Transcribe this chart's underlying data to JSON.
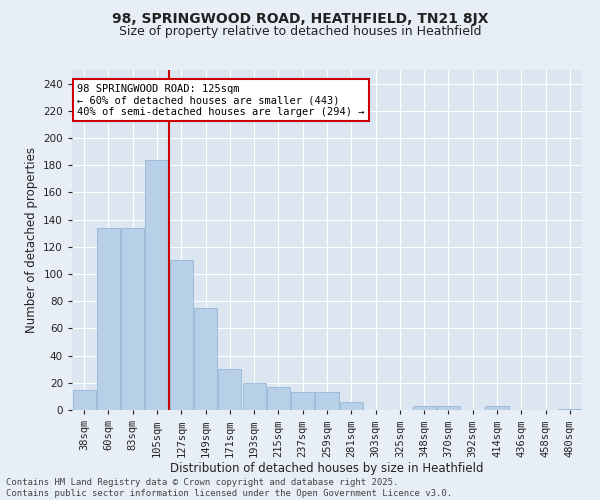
{
  "title1": "98, SPRINGWOOD ROAD, HEATHFIELD, TN21 8JX",
  "title2": "Size of property relative to detached houses in Heathfield",
  "xlabel": "Distribution of detached houses by size in Heathfield",
  "ylabel": "Number of detached properties",
  "categories": [
    "38sqm",
    "60sqm",
    "83sqm",
    "105sqm",
    "127sqm",
    "149sqm",
    "171sqm",
    "193sqm",
    "215sqm",
    "237sqm",
    "259sqm",
    "281sqm",
    "303sqm",
    "325sqm",
    "348sqm",
    "370sqm",
    "392sqm",
    "414sqm",
    "436sqm",
    "458sqm",
    "480sqm"
  ],
  "values": [
    15,
    134,
    134,
    184,
    110,
    75,
    30,
    20,
    17,
    13,
    13,
    6,
    0,
    0,
    3,
    3,
    0,
    3,
    0,
    0,
    1
  ],
  "bar_color": "#b8cfe8",
  "bar_edge_color": "#8bafd4",
  "vline_color": "#cc0000",
  "vline_x": 3.5,
  "annotation_text": "98 SPRINGWOOD ROAD: 125sqm\n← 60% of detached houses are smaller (443)\n40% of semi-detached houses are larger (294) →",
  "annotation_box_color": "#ffffff",
  "annotation_box_edge": "#cc0000",
  "footnote": "Contains HM Land Registry data © Crown copyright and database right 2025.\nContains public sector information licensed under the Open Government Licence v3.0.",
  "ylim": [
    0,
    250
  ],
  "yticks": [
    0,
    20,
    40,
    60,
    80,
    100,
    120,
    140,
    160,
    180,
    200,
    220,
    240
  ],
  "bg_color": "#e8eef5",
  "plot_bg_color": "#dce6f0",
  "grid_color": "#ffffff",
  "title_fontsize": 10,
  "subtitle_fontsize": 9,
  "axis_label_fontsize": 8.5,
  "tick_fontsize": 7.5,
  "annot_fontsize": 7.5,
  "footnote_fontsize": 6.5
}
